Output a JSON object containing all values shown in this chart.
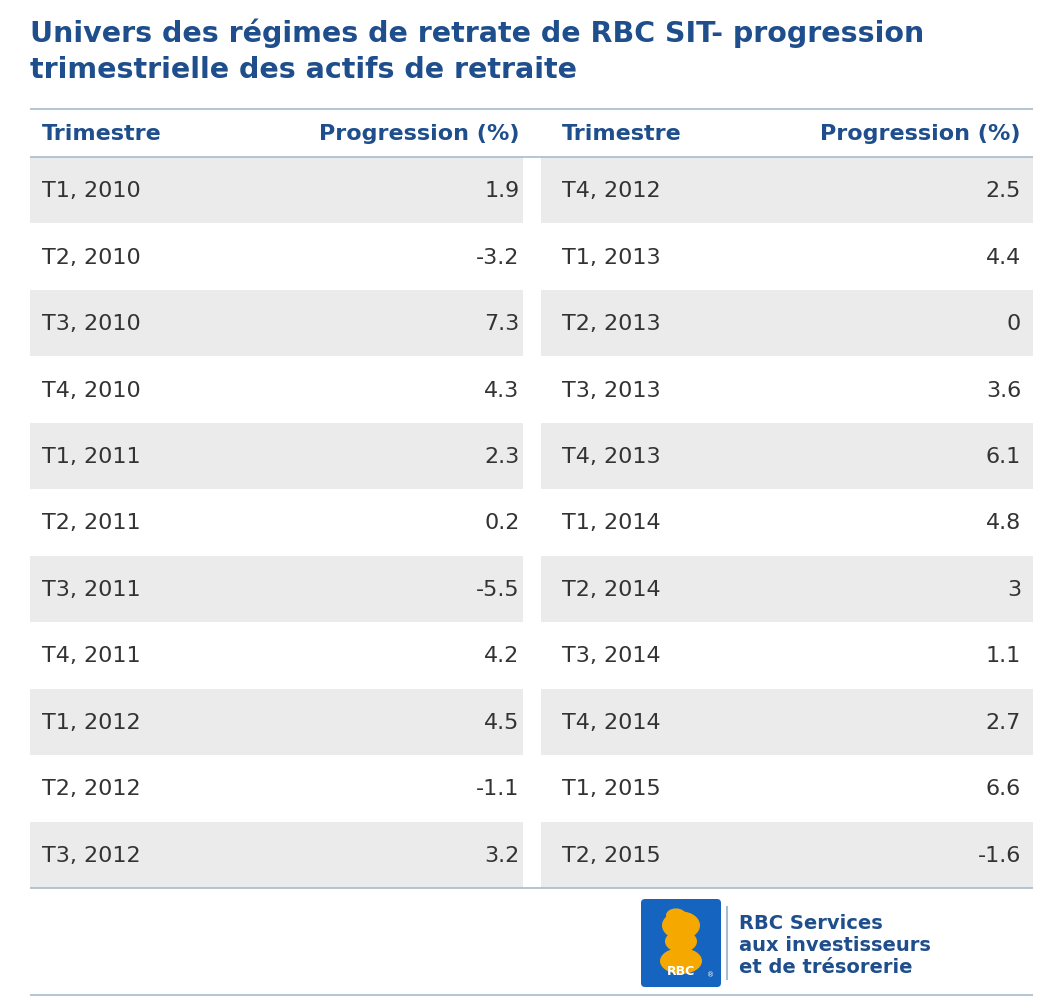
{
  "title_line1": "Univers des régimes de retrate de RBC SIT- progression",
  "title_line2": "trimestrielle des actifs de retraite",
  "title_color": "#1F4E8C",
  "header_color": "#1F4E8C",
  "text_color": "#333333",
  "background_color": "#FFFFFF",
  "row_alt_color": "#EBEBEB",
  "row_white_color": "#FFFFFF",
  "separator_color": "#AABBCC",
  "col_headers": [
    "Trimestre",
    "Progression (%)",
    "Trimestre",
    "Progression (%)"
  ],
  "left_data": [
    [
      "T1, 2010",
      "1.9"
    ],
    [
      "T2, 2010",
      "-3.2"
    ],
    [
      "T3, 2010",
      "7.3"
    ],
    [
      "T4, 2010",
      "4.3"
    ],
    [
      "T1, 2011",
      "2.3"
    ],
    [
      "T2, 2011",
      "0.2"
    ],
    [
      "T3, 2011",
      "-5.5"
    ],
    [
      "T4, 2011",
      "4.2"
    ],
    [
      "T1, 2012",
      "4.5"
    ],
    [
      "T2, 2012",
      "-1.1"
    ],
    [
      "T3, 2012",
      "3.2"
    ]
  ],
  "right_data": [
    [
      "T4, 2012",
      "2.5"
    ],
    [
      "T1, 2013",
      "4.4"
    ],
    [
      "T2, 2013",
      "0"
    ],
    [
      "T3, 2013",
      "3.6"
    ],
    [
      "T4, 2013",
      "6.1"
    ],
    [
      "T1, 2014",
      "4.8"
    ],
    [
      "T2, 2014",
      "3"
    ],
    [
      "T3, 2014",
      "1.1"
    ],
    [
      "T4, 2014",
      "2.7"
    ],
    [
      "T1, 2015",
      "6.6"
    ],
    [
      "T2, 2015",
      "-1.6"
    ]
  ],
  "rbc_text_line1": "RBC Services",
  "rbc_text_line2": "aux investisseurs",
  "rbc_text_line3": "et de trésorerie",
  "rbc_logo_color": "#1565C0",
  "rbc_logo_text_color": "#FFFFFF",
  "rbc_lion_color": "#FFD700"
}
